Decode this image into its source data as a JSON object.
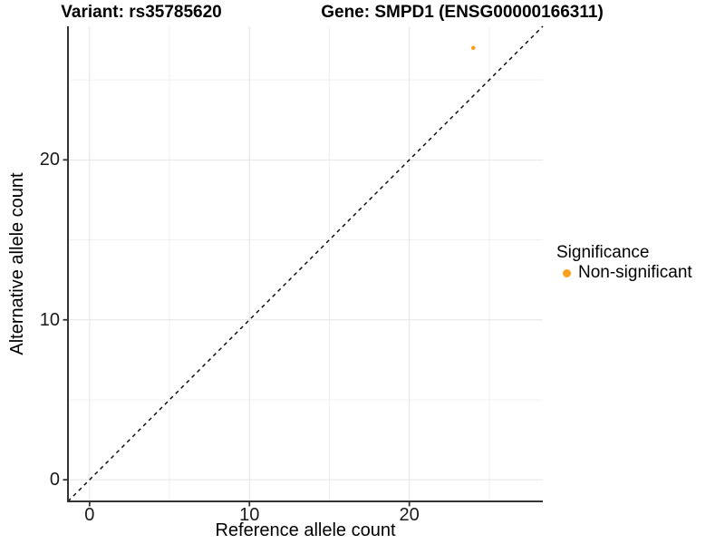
{
  "chart_data": {
    "type": "scatter",
    "title_left": "Variant: rs35785620",
    "title_right": "Gene: SMPD1 (ENSG00000166311)",
    "xlabel": "Reference allele count",
    "ylabel": "Alternative allele count",
    "xlim": [
      -1.35,
      28.35
    ],
    "ylim": [
      -1.35,
      28.35
    ],
    "x_ticks": [
      0,
      10,
      20
    ],
    "y_ticks": [
      0,
      10,
      20
    ],
    "x_minor_ticks": [
      5,
      15,
      25
    ],
    "y_minor_ticks": [
      5,
      15,
      25
    ],
    "grid": "on",
    "legend": {
      "title": "Significance",
      "position": "right",
      "items": [
        {
          "label": "Non-significant",
          "color": "#F9A01D"
        }
      ]
    },
    "series": [
      {
        "name": "Non-significant",
        "color": "#F9A01D",
        "marker_radius": 2.3,
        "points": [
          [
            24,
            27
          ]
        ]
      }
    ],
    "reference_line": {
      "type": "identity y=x",
      "style": "dashed",
      "color": "#000000"
    },
    "colors": {
      "grid_major": "#E4E4E4",
      "grid_minor": "#F0F0F0",
      "axis_line": "#333333",
      "tick_mark": "#333333"
    }
  }
}
